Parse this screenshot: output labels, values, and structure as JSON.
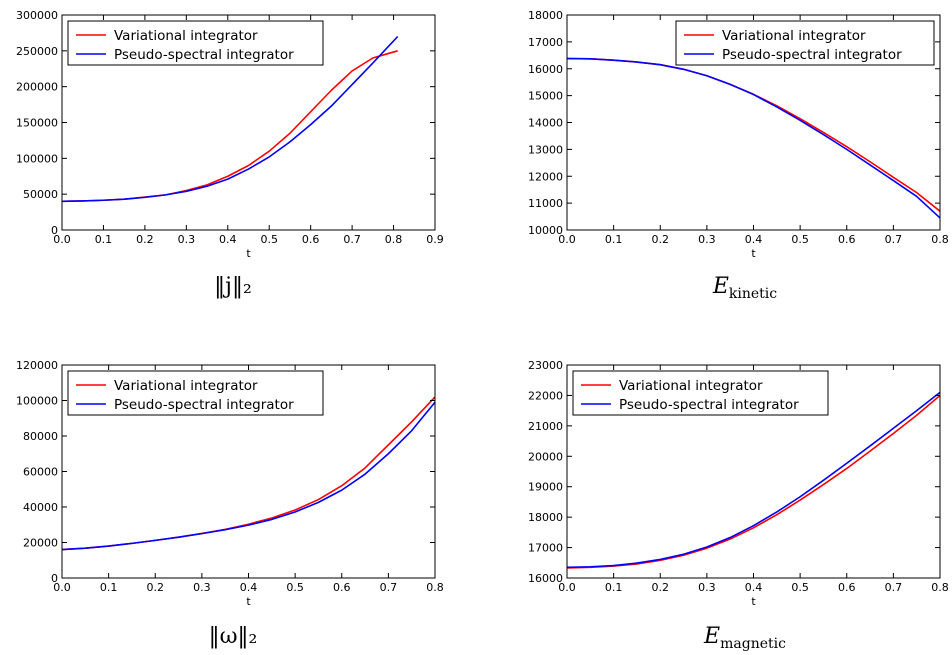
{
  "legend_labels": [
    "Variational integrator",
    "Pseudo-spectral integrator"
  ],
  "colors": {
    "variational": "#ff0000",
    "pseudo": "#0000ff"
  },
  "chart_data": [
    {
      "type": "line",
      "caption": "‖j‖₂",
      "xlabel": "t",
      "ylabel": "",
      "xlim": [
        0,
        0.9
      ],
      "ylim": [
        0,
        300000
      ],
      "xticks": [
        "0.0",
        "0.1",
        "0.2",
        "0.3",
        "0.4",
        "0.5",
        "0.6",
        "0.7",
        "0.8",
        "0.9"
      ],
      "yticks": [
        "0",
        "50000",
        "100000",
        "150000",
        "200000",
        "250000",
        "300000"
      ],
      "legend": "top-left",
      "series": [
        {
          "name": "Variational integrator",
          "x": [
            0.0,
            0.05,
            0.1,
            0.15,
            0.2,
            0.25,
            0.3,
            0.35,
            0.4,
            0.45,
            0.5,
            0.55,
            0.6,
            0.65,
            0.7,
            0.75,
            0.81
          ],
          "y": [
            40000,
            40500,
            41500,
            43000,
            46000,
            49000,
            55000,
            63000,
            75000,
            90000,
            110000,
            135000,
            165000,
            195000,
            222000,
            240000,
            250000
          ]
        },
        {
          "name": "Pseudo-spectral integrator",
          "x": [
            0.0,
            0.05,
            0.1,
            0.15,
            0.2,
            0.25,
            0.3,
            0.35,
            0.4,
            0.45,
            0.5,
            0.55,
            0.6,
            0.65,
            0.7,
            0.75,
            0.81
          ],
          "y": [
            40000,
            40500,
            41500,
            43000,
            45500,
            49000,
            54000,
            61000,
            71000,
            85000,
            102000,
            123000,
            147000,
            173000,
            203000,
            233000,
            270000
          ]
        }
      ]
    },
    {
      "type": "line",
      "caption": "E_kinetic",
      "xlabel": "t",
      "ylabel": "",
      "xlim": [
        0,
        0.8
      ],
      "ylim": [
        10000,
        18000
      ],
      "xticks": [
        "0.0",
        "0.1",
        "0.2",
        "0.3",
        "0.4",
        "0.5",
        "0.6",
        "0.7",
        "0.8"
      ],
      "yticks": [
        "10000",
        "11000",
        "12000",
        "13000",
        "14000",
        "15000",
        "16000",
        "17000",
        "18000"
      ],
      "legend": "top-right",
      "series": [
        {
          "name": "Variational integrator",
          "x": [
            0.0,
            0.05,
            0.1,
            0.15,
            0.2,
            0.25,
            0.3,
            0.35,
            0.4,
            0.45,
            0.5,
            0.55,
            0.6,
            0.65,
            0.7,
            0.75,
            0.8
          ],
          "y": [
            16380,
            16370,
            16320,
            16250,
            16150,
            15980,
            15740,
            15420,
            15050,
            14620,
            14140,
            13630,
            13100,
            12540,
            11960,
            11390,
            10700
          ]
        },
        {
          "name": "Pseudo-spectral integrator",
          "x": [
            0.0,
            0.05,
            0.1,
            0.15,
            0.2,
            0.25,
            0.3,
            0.35,
            0.4,
            0.45,
            0.5,
            0.55,
            0.6,
            0.65,
            0.7,
            0.75,
            0.8
          ],
          "y": [
            16380,
            16370,
            16320,
            16250,
            16150,
            15980,
            15740,
            15420,
            15040,
            14580,
            14080,
            13550,
            13000,
            12420,
            11840,
            11250,
            10450
          ]
        }
      ]
    },
    {
      "type": "line",
      "caption": "‖ω‖₂",
      "xlabel": "t",
      "ylabel": "",
      "xlim": [
        0,
        0.8
      ],
      "ylim": [
        0,
        120000
      ],
      "xticks": [
        "0.0",
        "0.1",
        "0.2",
        "0.3",
        "0.4",
        "0.5",
        "0.6",
        "0.7",
        "0.8"
      ],
      "yticks": [
        "0",
        "20000",
        "40000",
        "60000",
        "80000",
        "100000",
        "120000"
      ],
      "legend": "top-left",
      "series": [
        {
          "name": "Variational integrator",
          "x": [
            0.0,
            0.05,
            0.1,
            0.15,
            0.2,
            0.25,
            0.3,
            0.35,
            0.4,
            0.45,
            0.5,
            0.55,
            0.6,
            0.65,
            0.7,
            0.75,
            0.8
          ],
          "y": [
            16000,
            16800,
            18000,
            19500,
            21200,
            23000,
            25100,
            27400,
            30300,
            33800,
            38300,
            44200,
            52000,
            62000,
            75000,
            88000,
            102000
          ]
        },
        {
          "name": "Pseudo-spectral integrator",
          "x": [
            0.0,
            0.05,
            0.1,
            0.15,
            0.2,
            0.25,
            0.3,
            0.35,
            0.4,
            0.45,
            0.5,
            0.55,
            0.6,
            0.65,
            0.7,
            0.75,
            0.8
          ],
          "y": [
            16000,
            16800,
            18000,
            19500,
            21200,
            23000,
            25000,
            27200,
            29800,
            33000,
            37200,
            42600,
            49500,
            58500,
            70000,
            83000,
            99000
          ]
        }
      ]
    },
    {
      "type": "line",
      "caption": "E_magnetic",
      "xlabel": "t",
      "ylabel": "",
      "xlim": [
        0,
        0.8
      ],
      "ylim": [
        16000,
        23000
      ],
      "xticks": [
        "0.0",
        "0.1",
        "0.2",
        "0.3",
        "0.4",
        "0.5",
        "0.6",
        "0.7",
        "0.8"
      ],
      "yticks": [
        "16000",
        "17000",
        "18000",
        "19000",
        "20000",
        "21000",
        "22000",
        "23000"
      ],
      "legend": "top-left",
      "series": [
        {
          "name": "Variational integrator",
          "x": [
            0.0,
            0.05,
            0.1,
            0.15,
            0.2,
            0.25,
            0.3,
            0.35,
            0.4,
            0.45,
            0.5,
            0.55,
            0.6,
            0.65,
            0.7,
            0.75,
            0.8
          ],
          "y": [
            16330,
            16350,
            16390,
            16460,
            16580,
            16750,
            16980,
            17280,
            17650,
            18080,
            18560,
            19070,
            19600,
            20170,
            20750,
            21350,
            22000
          ]
        },
        {
          "name": "Pseudo-spectral integrator",
          "x": [
            0.0,
            0.05,
            0.1,
            0.15,
            0.2,
            0.25,
            0.3,
            0.35,
            0.4,
            0.45,
            0.5,
            0.55,
            0.6,
            0.65,
            0.7,
            0.75,
            0.8
          ],
          "y": [
            16350,
            16370,
            16410,
            16490,
            16610,
            16780,
            17020,
            17330,
            17720,
            18170,
            18670,
            19210,
            19770,
            20340,
            20920,
            21500,
            22100
          ]
        }
      ]
    }
  ]
}
